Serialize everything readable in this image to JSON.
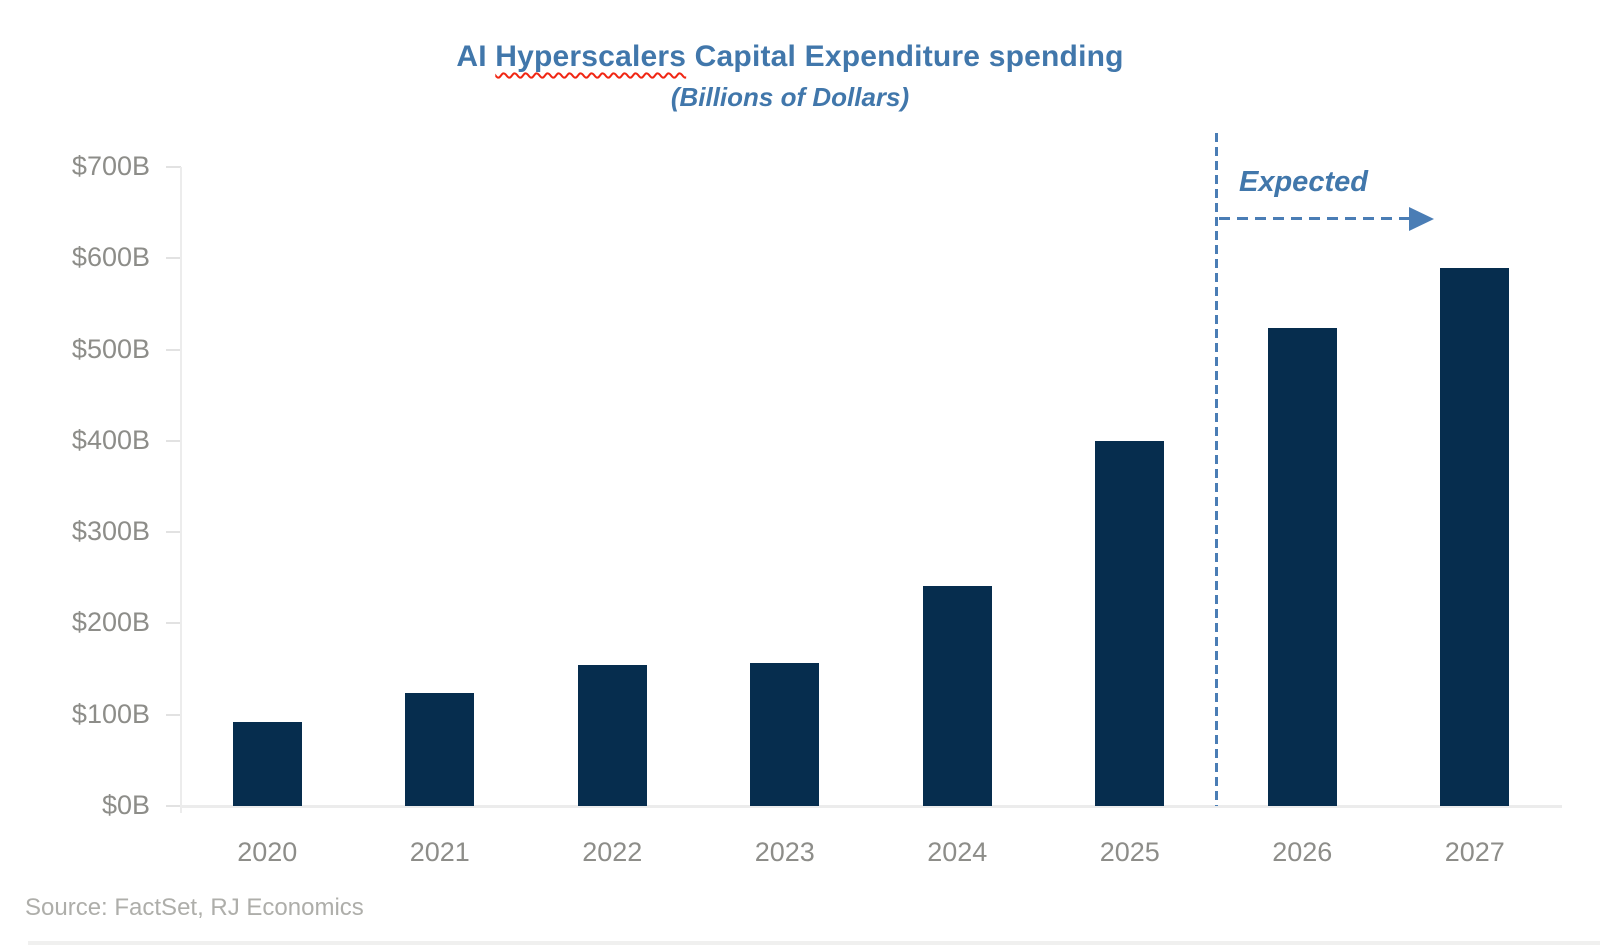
{
  "page": {
    "title_parts": {
      "before": "AI ",
      "misspelled": "Hyperscalers",
      "after": " Capital Expenditure spending"
    },
    "subtitle": "(Billions of Dollars)",
    "annotation_label": "Expected",
    "source": "Source: FactSet, RJ Economics"
  },
  "colors": {
    "bar": "#062d4e",
    "accent_blue": "#4177ab",
    "dash_blue": "#4a7db5",
    "squiggle_red": "#f02613",
    "axis_line_gray": "#ececec",
    "tick_gray": "#e2e2e2",
    "label_gray": "#8d8d89",
    "source_gray": "#aeaeaa",
    "background": "#ffffff"
  },
  "chart_data": {
    "type": "bar",
    "title": "AI Hyperscalers Capital Expenditure spending",
    "subtitle": "(Billions of Dollars)",
    "categories": [
      "2020",
      "2021",
      "2022",
      "2023",
      "2024",
      "2025",
      "2026",
      "2027"
    ],
    "values": [
      92,
      124,
      155,
      157,
      241,
      400,
      524,
      589
    ],
    "unit": "billions of US dollars",
    "xlabel": "",
    "ylabel": "",
    "ylim": [
      0,
      700
    ],
    "ytick_step": 100,
    "ytick_labels": [
      "$0B",
      "$100B",
      "$200B",
      "$300B",
      "$400B",
      "$500B",
      "$600B",
      "$700B"
    ],
    "grid": false,
    "legend": "none",
    "divider_before_category": "2026",
    "annotation": "Expected",
    "annotation_style": "dashed vertical line with dashed right arrow over expected years",
    "source": "Source: FactSet, RJ Economics"
  }
}
